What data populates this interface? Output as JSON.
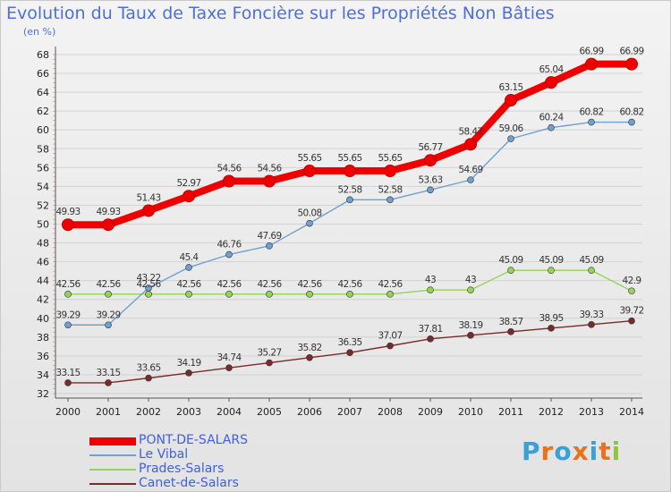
{
  "title": "Evolution du Taux de Taxe Foncière sur les Propriétés Non Bâties",
  "unit": "(en %)",
  "logo_text": "Proxiti",
  "chart_data": {
    "type": "line",
    "title": "Evolution du Taux de Taxe Foncière sur les Propriétés Non Bâties",
    "ylabel": "(en %)",
    "x": [
      "2000",
      "2001",
      "2002",
      "2003",
      "2004",
      "2005",
      "2006",
      "2007",
      "2008",
      "2009",
      "2010",
      "2011",
      "2012",
      "2013",
      "2014"
    ],
    "ylim": [
      32,
      68
    ],
    "yticks": [
      32,
      34,
      36,
      38,
      40,
      42,
      44,
      46,
      48,
      50,
      52,
      54,
      56,
      58,
      60,
      62,
      64,
      66,
      68
    ],
    "grid": "horizontal",
    "legend_position": "bottom-left",
    "series": [
      {
        "name": "PONT-DE-SALARS",
        "color": "#ee0000",
        "values": [
          49.93,
          49.93,
          51.43,
          52.97,
          54.56,
          54.56,
          55.65,
          55.65,
          55.65,
          56.77,
          58.47,
          63.15,
          65.04,
          66.99,
          66.99
        ],
        "labels": [
          "49.93",
          "49.93",
          "51.43",
          "52.97",
          "54.56",
          "54.56",
          "55.65",
          "55.65",
          "55.65",
          "56.77",
          "58.47",
          "63.15",
          "65.04",
          "66.99",
          "66.99"
        ]
      },
      {
        "name": "Le Vibal",
        "color": "#6fa0cf",
        "values": [
          39.29,
          39.29,
          43.22,
          45.4,
          46.76,
          47.69,
          50.08,
          52.58,
          52.58,
          53.63,
          54.69,
          59.06,
          60.24,
          60.82,
          60.82
        ],
        "labels": [
          "39.29",
          "39.29",
          "43.22",
          "45.4",
          "46.76",
          "47.69",
          "50.08",
          "52.58",
          "52.58",
          "53.63",
          "54.69",
          "59.06",
          "60.24",
          "60.82",
          "60.82"
        ]
      },
      {
        "name": "Prades-Salars",
        "color": "#94d45a",
        "values": [
          42.56,
          42.56,
          42.56,
          42.56,
          42.56,
          42.56,
          42.56,
          42.56,
          42.56,
          43,
          43,
          45.09,
          45.09,
          45.09,
          42.9
        ],
        "labels": [
          "42.56",
          "42.56",
          "42.56",
          "42.56",
          "42.56",
          "42.56",
          "42.56",
          "42.56",
          "42.56",
          "43",
          "43",
          "45.09",
          "45.09",
          "45.09",
          "42.9"
        ]
      },
      {
        "name": "Canet-de-Salars",
        "color": "#7a2a2a",
        "values": [
          33.15,
          33.15,
          33.65,
          34.19,
          34.74,
          35.27,
          35.82,
          36.35,
          37.07,
          37.81,
          38.19,
          38.57,
          38.95,
          39.33,
          39.72
        ],
        "labels": [
          "33.15",
          "33.15",
          "33.65",
          "34.19",
          "34.74",
          "35.27",
          "35.82",
          "36.35",
          "37.07",
          "37.81",
          "38.19",
          "38.57",
          "38.95",
          "39.33",
          "39.72"
        ]
      }
    ]
  }
}
